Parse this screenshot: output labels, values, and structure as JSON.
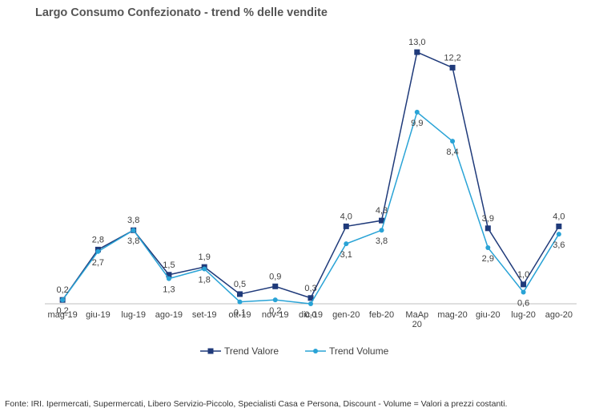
{
  "title": "Largo Consumo Confezionato - trend % delle vendite",
  "source": "Fonte: IRI. Ipermercati, Supermercati, Libero Servizio-Piccolo,  Specialisti Casa e Persona, Discount -  Volume =  Valori a prezzi  costanti.",
  "chart_data": {
    "type": "line",
    "title": "Largo Consumo Confezionato - trend % delle vendite",
    "categories": [
      [
        "mag-19"
      ],
      [
        "giu-19"
      ],
      [
        "lug-19"
      ],
      [
        "ago-19"
      ],
      [
        "set-19"
      ],
      [
        "ott-19"
      ],
      [
        "nov-19"
      ],
      [
        "dic-19"
      ],
      [
        "gen-20"
      ],
      [
        "feb-20"
      ],
      [
        "MaAp",
        "20"
      ],
      [
        "mag-20"
      ],
      [
        "giu-20"
      ],
      [
        "lug-20"
      ],
      [
        "ago-20"
      ]
    ],
    "ylim": [
      0,
      13.5
    ],
    "grid": false,
    "legend": "bottom-center",
    "series": [
      {
        "name": "Trend Valore",
        "color": "#1f3a7a",
        "marker": "square",
        "values": [
          0.2,
          2.8,
          3.8,
          1.5,
          1.9,
          0.5,
          0.9,
          0.3,
          4.0,
          4.3,
          13.0,
          12.2,
          3.9,
          1.0,
          4.0
        ],
        "labels": [
          "0,2",
          "2,8",
          "3,8",
          "1,5",
          "1,9",
          "0,5",
          "0,9",
          "0,3",
          "4,0",
          "4,3",
          "13,0",
          "12,2",
          "3,9",
          "1,0",
          "4,0"
        ]
      },
      {
        "name": "Trend Volume",
        "color": "#29a3d6",
        "marker": "circle",
        "values": [
          0.2,
          2.7,
          3.8,
          1.3,
          1.8,
          0.1,
          0.2,
          0.0,
          3.1,
          3.8,
          9.9,
          8.4,
          2.9,
          0.6,
          3.6
        ],
        "labels": [
          "0,2",
          "2,7",
          "3,8",
          "1,3",
          "1,8",
          "0,1",
          "0,2",
          "0,0",
          "3,1",
          "3,8",
          "9,9",
          "8,4",
          "2,9",
          "0,6",
          "3,6"
        ]
      }
    ]
  }
}
